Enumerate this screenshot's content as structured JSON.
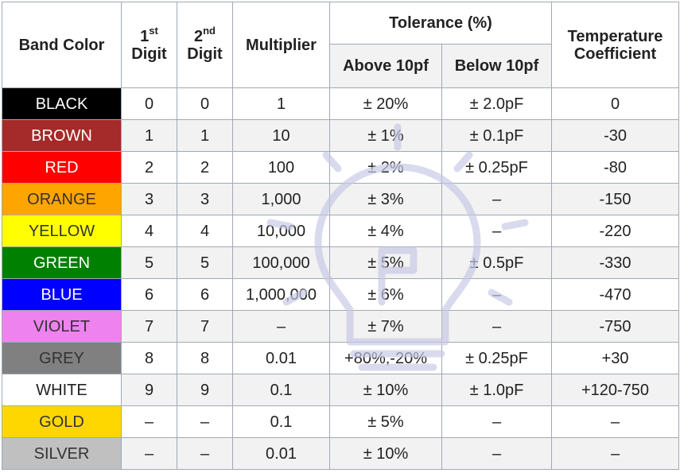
{
  "headers": {
    "band_color": "Band Color",
    "digit1_num": "1",
    "digit1_sup": "st",
    "digit1_word": "Digit",
    "digit2_num": "2",
    "digit2_sup": "nd",
    "digit2_word": "Digit",
    "multiplier": "Multiplier",
    "tolerance": "Tolerance (%)",
    "above": "Above 10pf",
    "below": "Below 10pf",
    "temp_line1": "Temperature",
    "temp_line2": "Coefficient"
  },
  "rows": [
    {
      "color": "BLACK",
      "bg": "#000000",
      "fg": "#ffffff",
      "d1": "0",
      "d2": "0",
      "mult": "1",
      "above": "± 20%",
      "below": "± 2.0pF",
      "temp": "0"
    },
    {
      "color": "BROWN",
      "bg": "#a52a2a",
      "fg": "#ffffff",
      "d1": "1",
      "d2": "1",
      "mult": "10",
      "above": "± 1%",
      "below": "± 0.1pF",
      "temp": "-30"
    },
    {
      "color": "RED",
      "bg": "#ff0000",
      "fg": "#ffffff",
      "d1": "2",
      "d2": "2",
      "mult": "100",
      "above": "± 2%",
      "below": "± 0.25pF",
      "temp": "-80"
    },
    {
      "color": "ORANGE",
      "bg": "#ffa500",
      "fg": "#333333",
      "d1": "3",
      "d2": "3",
      "mult": "1,000",
      "above": "± 3%",
      "below": "–",
      "temp": "-150"
    },
    {
      "color": "YELLOW",
      "bg": "#ffff00",
      "fg": "#333333",
      "d1": "4",
      "d2": "4",
      "mult": "10,000",
      "above": "± 4%",
      "below": "–",
      "temp": "-220"
    },
    {
      "color": "GREEN",
      "bg": "#008000",
      "fg": "#ffffff",
      "d1": "5",
      "d2": "5",
      "mult": "100,000",
      "above": "± 5%",
      "below": "± 0.5pF",
      "temp": "-330"
    },
    {
      "color": "BLUE",
      "bg": "#0000ff",
      "fg": "#ffffff",
      "d1": "6",
      "d2": "6",
      "mult": "1,000,000",
      "above": "± 6%",
      "below": "–",
      "temp": "-470"
    },
    {
      "color": "VIOLET",
      "bg": "#ee82ee",
      "fg": "#333333",
      "d1": "7",
      "d2": "7",
      "mult": "–",
      "above": "± 7%",
      "below": "–",
      "temp": "-750"
    },
    {
      "color": "GREY",
      "bg": "#808080",
      "fg": "#333333",
      "d1": "8",
      "d2": "8",
      "mult": "0.01",
      "above": "+80%,-20%",
      "below": "± 0.25pF",
      "temp": "+30"
    },
    {
      "color": "WHITE",
      "bg": "#ffffff",
      "fg": "#222222",
      "d1": "9",
      "d2": "9",
      "mult": "0.1",
      "above": "± 10%",
      "below": "± 1.0pF",
      "temp": "+120-750"
    },
    {
      "color": "GOLD",
      "bg": "#ffd700",
      "fg": "#333333",
      "d1": "–",
      "d2": "–",
      "mult": "0.1",
      "above": "± 5%",
      "below": "–",
      "temp": "–"
    },
    {
      "color": "SILVER",
      "bg": "#c0c0c0",
      "fg": "#333333",
      "d1": "–",
      "d2": "–",
      "mult": "0.01",
      "above": "± 10%",
      "below": "–",
      "temp": "–"
    }
  ]
}
